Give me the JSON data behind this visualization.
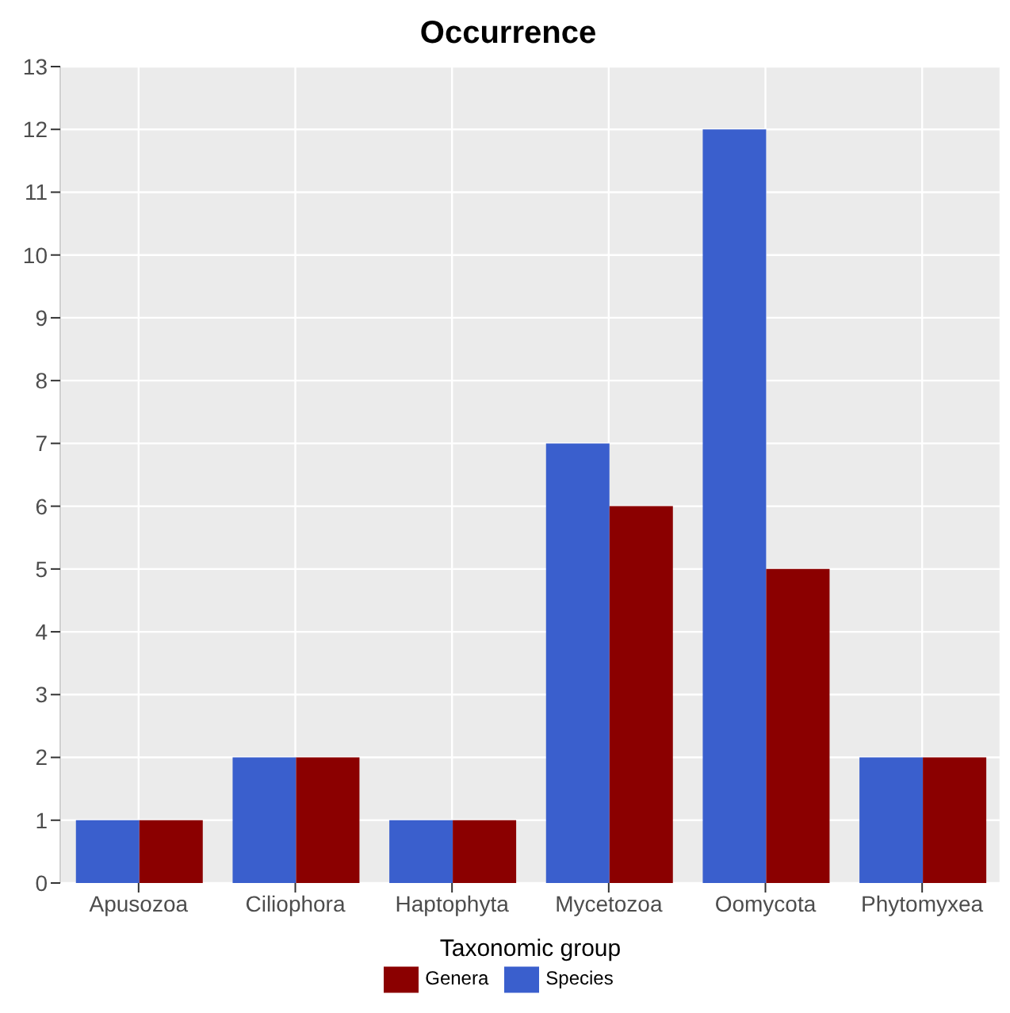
{
  "chart_data": {
    "type": "bar",
    "title": "Occurrence",
    "xlabel": "Taxonomic group",
    "categories": [
      "Apusozoa",
      "Ciliophora",
      "Haptophyta",
      "Mycetozoa",
      "Oomycota",
      "Phytomyxea"
    ],
    "series": [
      {
        "name": "Species",
        "color": "#3a5fcd",
        "values": [
          1,
          2,
          1,
          7,
          12,
          2
        ]
      },
      {
        "name": "Genera",
        "color": "#8b0000",
        "values": [
          1,
          2,
          1,
          6,
          5,
          2
        ]
      }
    ],
    "ylim": [
      0,
      13
    ],
    "yticks": [
      0,
      1,
      2,
      3,
      4,
      5,
      6,
      7,
      8,
      9,
      10,
      11,
      12,
      13
    ],
    "grid": true,
    "legend": "bottom"
  }
}
